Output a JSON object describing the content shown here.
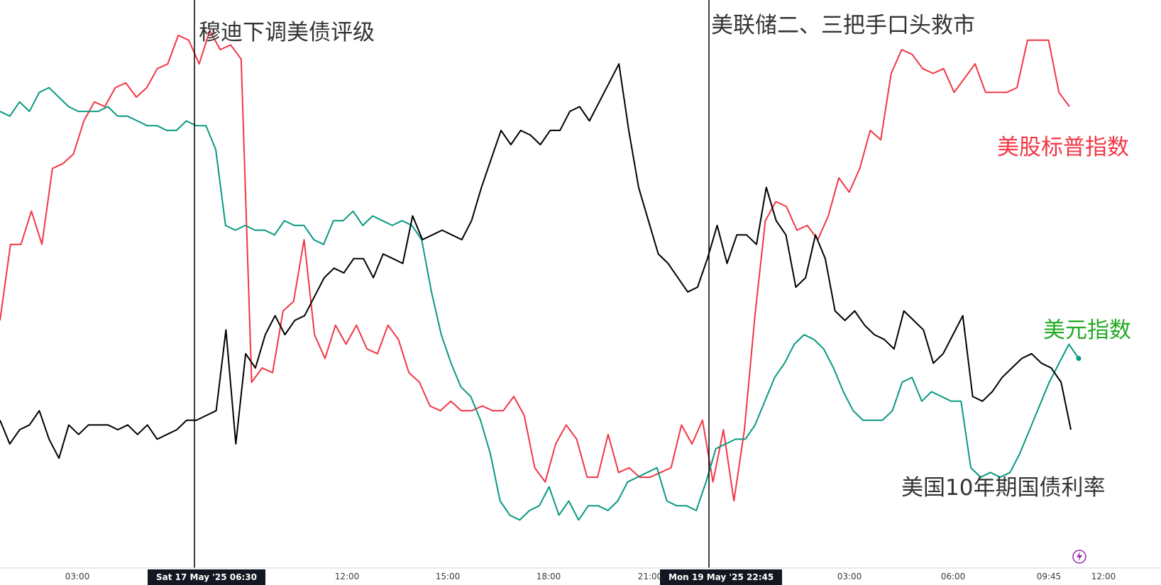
{
  "annotations": {
    "event1": "穆迪下调美债评级",
    "event2": "美联储二、三把手口头救市",
    "spx_label": "美股标普指数",
    "dxy_label": "美元指数",
    "us10y_label": "美国10年期国债利率"
  },
  "markers": {
    "m1": "Sat 17 May '25   06:30",
    "m2": "Mon 19 May '25   22:45"
  },
  "chart_data": {
    "type": "line",
    "x_axis_ticks": [
      "03:00",
      "12:00",
      "15:00",
      "18:00",
      "21:00",
      "03:00",
      "06:00",
      "09:45",
      "12:00"
    ],
    "y_range_normalized": [
      0,
      100
    ],
    "colors": {
      "spx": "#f23645",
      "dxy": "#089981",
      "us10y": "#000000"
    },
    "series": [
      {
        "key": "spx",
        "name": "美股标普指数",
        "values": [
          43,
          59,
          59,
          66,
          59,
          75,
          76,
          78,
          85,
          89,
          88,
          92,
          93,
          90,
          92,
          96,
          97,
          103,
          102,
          97,
          104,
          100,
          101,
          98,
          30,
          33,
          32,
          45,
          47,
          60,
          40,
          35,
          42,
          38,
          42,
          37,
          36,
          42,
          39,
          32,
          30,
          25,
          24,
          26,
          24,
          24,
          25,
          24,
          24,
          27,
          23,
          12,
          9,
          17,
          21,
          18,
          10,
          10,
          19,
          11,
          12,
          10,
          10,
          11,
          12,
          21,
          17,
          22,
          9,
          20,
          5,
          20,
          44,
          64,
          68,
          67,
          62,
          63,
          60,
          65,
          73,
          70,
          75,
          83,
          81,
          95,
          100,
          99,
          96,
          95,
          96,
          91,
          94,
          97,
          91,
          91,
          91,
          92,
          102,
          102,
          102,
          91,
          88
        ]
      },
      {
        "key": "dxy",
        "name": "美元指数",
        "values": [
          87,
          86,
          89,
          87,
          91,
          92,
          90,
          88,
          87,
          87,
          87,
          88,
          86,
          86,
          85,
          84,
          84,
          83,
          83,
          85,
          84,
          84,
          79,
          63,
          62,
          63,
          62,
          62,
          61,
          64,
          63,
          63,
          60,
          59,
          64,
          64,
          66,
          63,
          65,
          64,
          63,
          64,
          63,
          60,
          49,
          40,
          34,
          29,
          27,
          22,
          15,
          5,
          2,
          1,
          3,
          4,
          8,
          2,
          5,
          1,
          4,
          4,
          3,
          5,
          9,
          10,
          11,
          12,
          5,
          4,
          4,
          3,
          9,
          16,
          17,
          18,
          18,
          21,
          26,
          31,
          34,
          38,
          40,
          39,
          37,
          33,
          28,
          24,
          22,
          22,
          22,
          24,
          30,
          31,
          26,
          28,
          27,
          26,
          26,
          12,
          10,
          11,
          10,
          11,
          15,
          20,
          25,
          30,
          34,
          38,
          35
        ]
      },
      {
        "key": "us10y",
        "name": "美国10年期国债利率",
        "values": [
          22,
          17,
          20,
          21,
          24,
          18,
          14,
          21,
          19,
          21,
          21,
          21,
          20,
          21,
          19,
          21,
          18,
          19,
          20,
          22,
          22,
          23,
          24,
          41,
          17,
          36,
          33,
          40,
          44,
          40,
          43,
          44,
          48,
          52,
          54,
          53,
          56,
          56,
          52,
          57,
          56,
          55,
          65,
          60,
          61,
          62,
          61,
          60,
          64,
          71,
          77,
          83,
          80,
          83,
          82,
          80,
          83,
          83,
          87,
          88,
          85,
          89,
          93,
          97,
          83,
          71,
          64,
          57,
          55,
          52,
          49,
          50,
          56,
          63,
          55,
          61,
          61,
          59,
          71,
          64,
          61,
          50,
          52,
          61,
          56,
          45,
          43,
          45,
          42,
          40,
          39,
          37,
          45,
          43,
          41,
          34,
          36,
          40,
          44,
          27,
          26,
          28,
          31,
          33,
          35,
          36,
          34,
          33,
          30,
          20
        ]
      }
    ]
  }
}
